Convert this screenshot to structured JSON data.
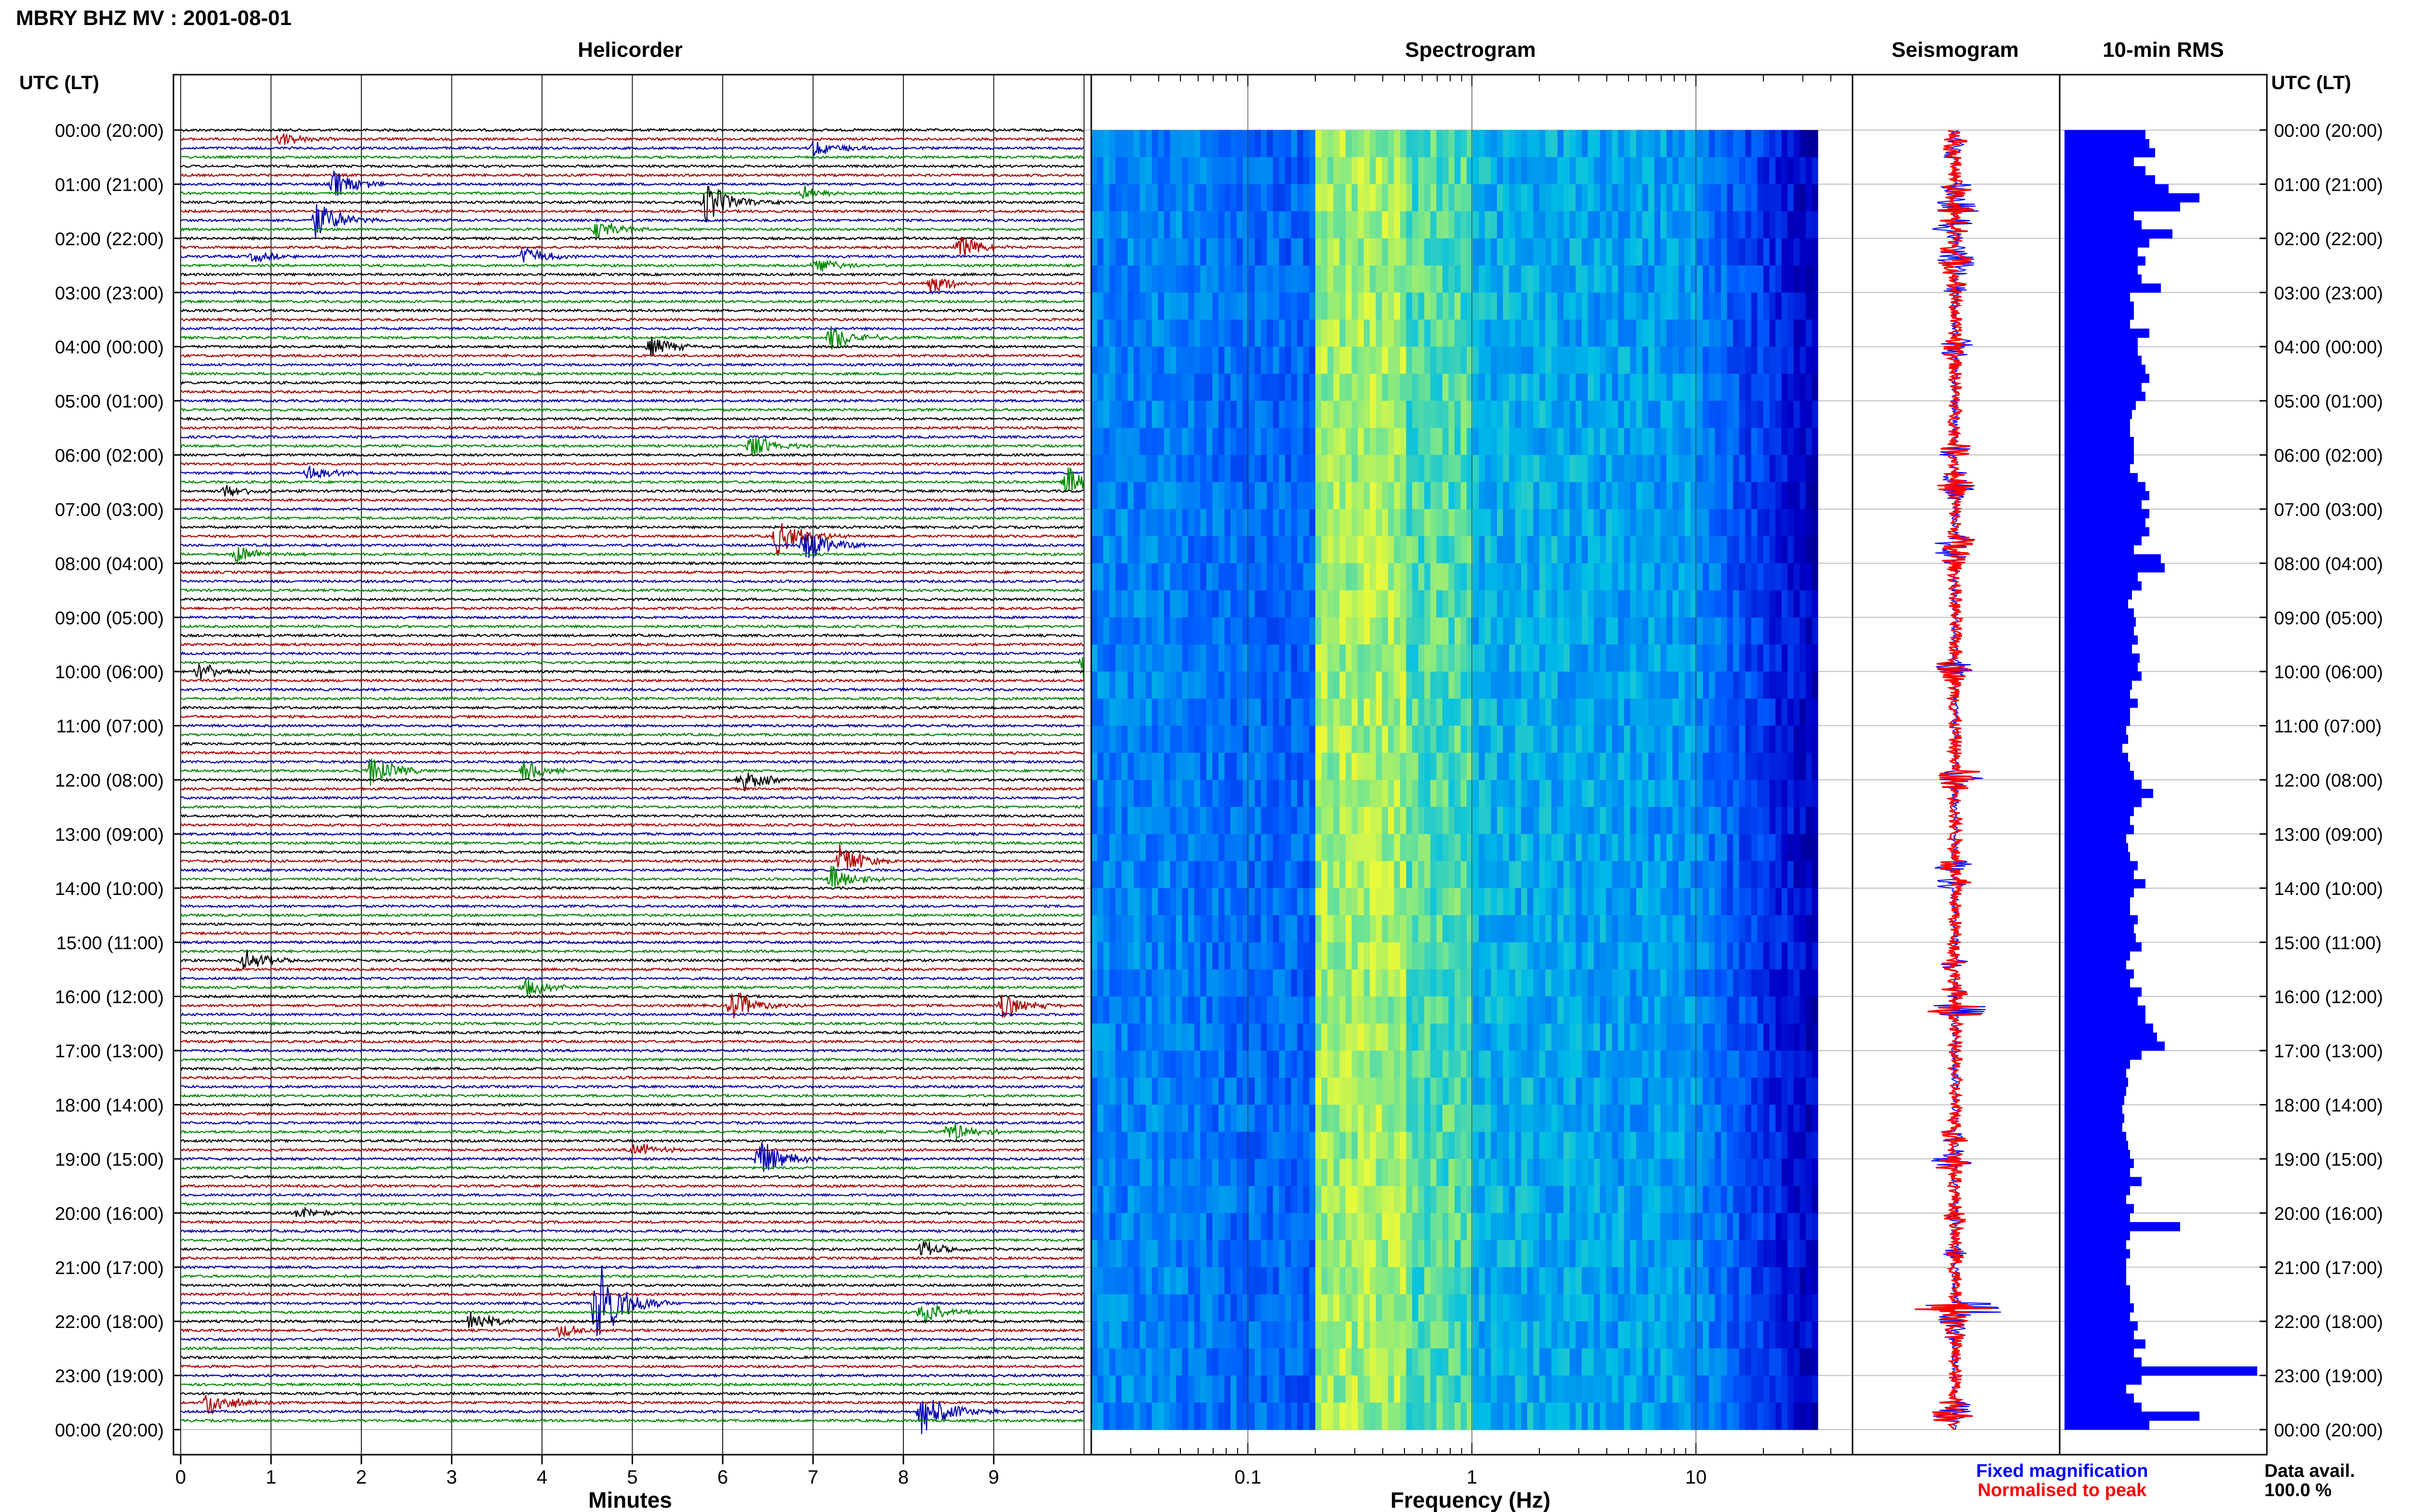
{
  "header": {
    "title": "MBRY BHZ MV : 2001-08-01",
    "time_axis_label": "UTC (LT)"
  },
  "panels": {
    "helicorder": "Helicorder",
    "spectrogram": "Spectrogram",
    "seismogram": "Seismogram",
    "rms": "10-min RMS"
  },
  "colors": {
    "trace_cycle": [
      "#000000",
      "#aa0000",
      "#0000aa",
      "#008800"
    ],
    "fixed_magnification": "#0000ff",
    "normalised_to_peak": "#ff0000",
    "rms_bar": "#0000ff"
  },
  "chart_data": [
    {
      "type": "line",
      "panel": "helicorder",
      "title": "Helicorder",
      "xlabel": "Minutes",
      "x_ticks": [
        "0",
        "1",
        "2",
        "3",
        "4",
        "5",
        "6",
        "7",
        "8",
        "9"
      ],
      "xlim": [
        0,
        10
      ],
      "trace_interval_minutes": 10,
      "trace_count": 144,
      "y_ticks_utc_lt": [
        "00:00 (20:00)",
        "01:00 (21:00)",
        "02:00 (22:00)",
        "03:00 (23:00)",
        "04:00 (00:00)",
        "05:00 (01:00)",
        "06:00 (02:00)",
        "07:00 (03:00)",
        "08:00 (04:00)",
        "09:00 (05:00)",
        "10:00 (06:00)",
        "11:00 (07:00)",
        "12:00 (08:00)",
        "13:00 (09:00)",
        "14:00 (10:00)",
        "15:00 (11:00)",
        "16:00 (12:00)",
        "17:00 (13:00)",
        "18:00 (14:00)",
        "19:00 (15:00)",
        "20:00 (16:00)",
        "21:00 (17:00)",
        "22:00 (18:00)",
        "23:00 (19:00)",
        "00:00 (20:00)"
      ],
      "events": [
        {
          "trace": 1,
          "minute": 1.1,
          "amp": 0.5
        },
        {
          "trace": 2,
          "minute": 7.0,
          "amp": 0.6
        },
        {
          "trace": 6,
          "minute": 1.7,
          "amp": 1.0
        },
        {
          "trace": 8,
          "minute": 5.8,
          "amp": 1.6
        },
        {
          "trace": 7,
          "minute": 6.9,
          "amp": 0.5
        },
        {
          "trace": 10,
          "minute": 1.5,
          "amp": 1.4
        },
        {
          "trace": 11,
          "minute": 4.6,
          "amp": 0.7
        },
        {
          "trace": 13,
          "minute": 8.6,
          "amp": 0.9
        },
        {
          "trace": 14,
          "minute": 0.8,
          "amp": 0.4
        },
        {
          "trace": 14,
          "minute": 3.8,
          "amp": 0.7
        },
        {
          "trace": 15,
          "minute": 7.0,
          "amp": 0.6
        },
        {
          "trace": 17,
          "minute": 8.3,
          "amp": 0.7
        },
        {
          "trace": 23,
          "minute": 7.2,
          "amp": 1.0
        },
        {
          "trace": 24,
          "minute": 5.2,
          "amp": 0.7
        },
        {
          "trace": 35,
          "minute": 6.3,
          "amp": 0.9
        },
        {
          "trace": 38,
          "minute": 1.4,
          "amp": 0.6
        },
        {
          "trace": 39,
          "minute": 9.8,
          "amp": 1.2
        },
        {
          "trace": 40,
          "minute": 0.5,
          "amp": 0.5
        },
        {
          "trace": 45,
          "minute": 6.6,
          "amp": 1.4
        },
        {
          "trace": 46,
          "minute": 6.9,
          "amp": 1.4
        },
        {
          "trace": 47,
          "minute": 0.6,
          "amp": 0.7
        },
        {
          "trace": 59,
          "minute": 10.0,
          "amp": 1.3
        },
        {
          "trace": 60,
          "minute": 0.2,
          "amp": 0.6
        },
        {
          "trace": 71,
          "minute": 2.1,
          "amp": 1.1
        },
        {
          "trace": 71,
          "minute": 3.8,
          "amp": 0.8
        },
        {
          "trace": 72,
          "minute": 6.2,
          "amp": 0.8
        },
        {
          "trace": 81,
          "minute": 7.3,
          "amp": 1.2
        },
        {
          "trace": 83,
          "minute": 7.2,
          "amp": 1.0
        },
        {
          "trace": 92,
          "minute": 0.7,
          "amp": 0.8
        },
        {
          "trace": 95,
          "minute": 3.8,
          "amp": 0.7
        },
        {
          "trace": 97,
          "minute": 6.1,
          "amp": 1.2
        },
        {
          "trace": 97,
          "minute": 9.1,
          "amp": 1.0
        },
        {
          "trace": 111,
          "minute": 8.5,
          "amp": 0.8
        },
        {
          "trace": 113,
          "minute": 5.0,
          "amp": 0.6
        },
        {
          "trace": 114,
          "minute": 6.4,
          "amp": 1.5
        },
        {
          "trace": 120,
          "minute": 1.3,
          "amp": 0.5
        },
        {
          "trace": 124,
          "minute": 8.2,
          "amp": 0.6
        },
        {
          "trace": 130,
          "minute": 4.6,
          "amp": 3.5
        },
        {
          "trace": 131,
          "minute": 8.2,
          "amp": 1.0
        },
        {
          "trace": 132,
          "minute": 3.2,
          "amp": 0.8
        },
        {
          "trace": 133,
          "minute": 4.2,
          "amp": 0.5
        },
        {
          "trace": 141,
          "minute": 0.3,
          "amp": 1.0
        },
        {
          "trace": 142,
          "minute": 8.2,
          "amp": 1.8
        }
      ]
    },
    {
      "type": "heatmap",
      "panel": "spectrogram",
      "title": "Spectrogram",
      "xlabel": "Frequency (Hz)",
      "x_scale": "log",
      "xlim": [
        0.02,
        50
      ],
      "x_tick_labels": [
        "0.1",
        "1",
        "10"
      ],
      "x_tick_values": [
        0.1,
        1,
        10
      ],
      "data_fmax": 35,
      "band_edge_hz": 0.2
    },
    {
      "type": "line",
      "panel": "seismogram",
      "title": "Seismogram",
      "legend": [
        "Fixed magnification",
        "Normalised to peak"
      ]
    },
    {
      "type": "bar",
      "panel": "rms",
      "title": "10-min RMS",
      "orientation": "horizontal",
      "interval_minutes": 10,
      "values": [
        0.42,
        0.44,
        0.47,
        0.36,
        0.42,
        0.47,
        0.54,
        0.7,
        0.6,
        0.36,
        0.4,
        0.56,
        0.44,
        0.38,
        0.42,
        0.38,
        0.4,
        0.5,
        0.34,
        0.36,
        0.36,
        0.34,
        0.44,
        0.38,
        0.38,
        0.4,
        0.42,
        0.44,
        0.4,
        0.42,
        0.37,
        0.35,
        0.34,
        0.34,
        0.36,
        0.36,
        0.36,
        0.34,
        0.38,
        0.42,
        0.44,
        0.4,
        0.44,
        0.42,
        0.44,
        0.4,
        0.36,
        0.5,
        0.52,
        0.38,
        0.4,
        0.35,
        0.33,
        0.36,
        0.37,
        0.36,
        0.38,
        0.35,
        0.39,
        0.38,
        0.4,
        0.35,
        0.34,
        0.38,
        0.34,
        0.34,
        0.32,
        0.33,
        0.3,
        0.33,
        0.34,
        0.36,
        0.4,
        0.46,
        0.4,
        0.36,
        0.34,
        0.36,
        0.32,
        0.33,
        0.34,
        0.38,
        0.36,
        0.42,
        0.36,
        0.34,
        0.34,
        0.38,
        0.36,
        0.37,
        0.4,
        0.34,
        0.32,
        0.36,
        0.34,
        0.4,
        0.38,
        0.42,
        0.42,
        0.46,
        0.48,
        0.52,
        0.4,
        0.34,
        0.32,
        0.33,
        0.32,
        0.31,
        0.3,
        0.31,
        0.3,
        0.32,
        0.33,
        0.34,
        0.36,
        0.34,
        0.4,
        0.34,
        0.32,
        0.36,
        0.34,
        0.6,
        0.34,
        0.32,
        0.34,
        0.32,
        0.32,
        0.32,
        0.34,
        0.34,
        0.36,
        0.34,
        0.38,
        0.36,
        0.42,
        0.36,
        0.4,
        1.0,
        0.4,
        0.32,
        0.36,
        0.4,
        0.7,
        0.44
      ]
    }
  ],
  "footer": {
    "minutes_label": "Minutes",
    "frequency_label": "Frequency (Hz)",
    "legend_fixed": "Fixed magnification",
    "legend_normalised": "Normalised to peak",
    "data_avail_label": "Data avail.",
    "data_avail_value": "100.0 %"
  }
}
